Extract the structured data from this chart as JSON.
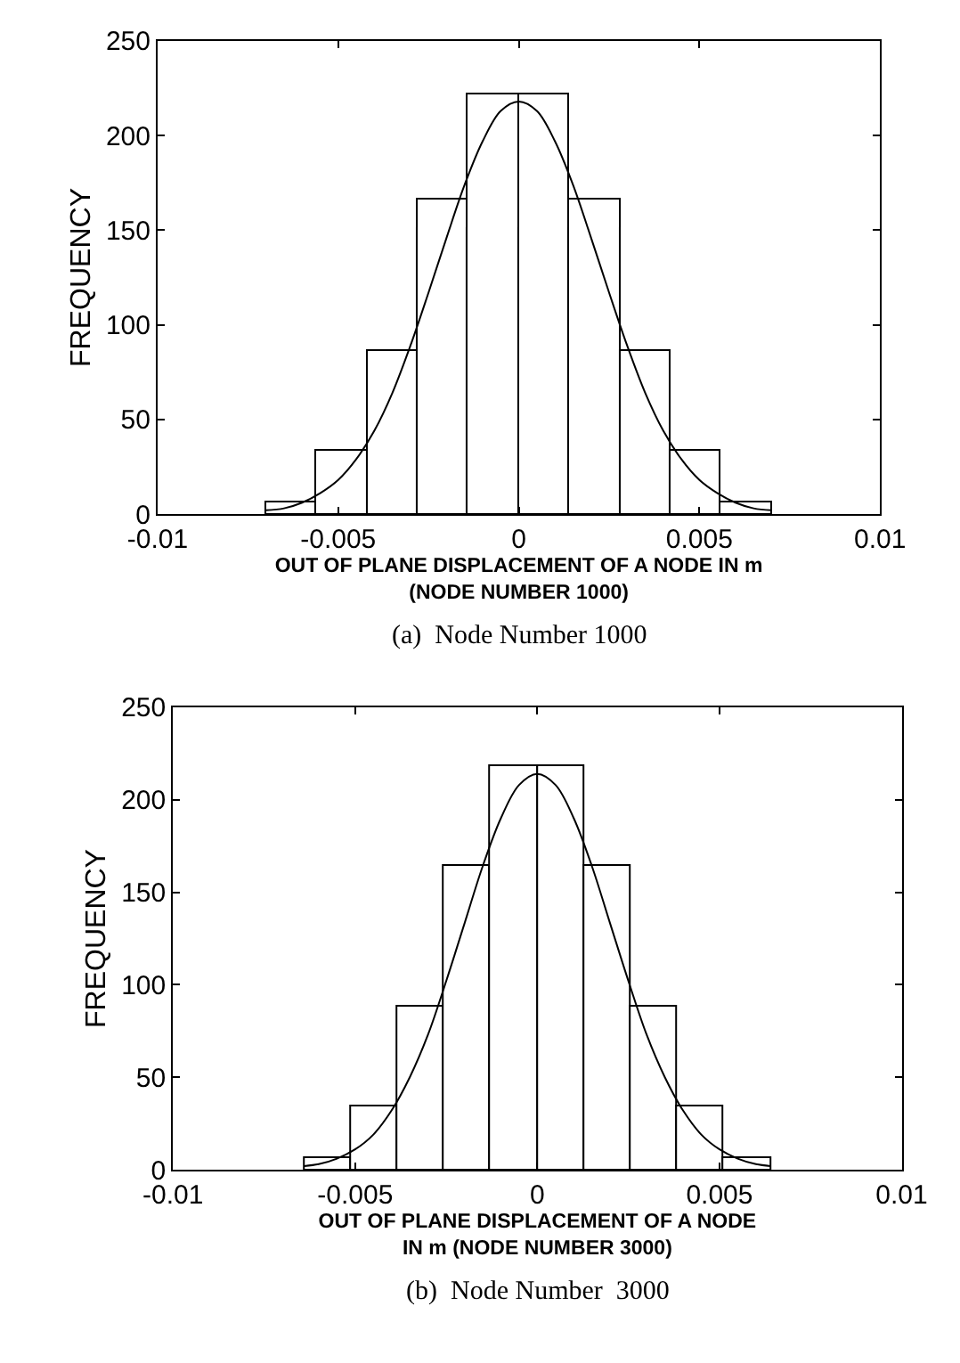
{
  "chart_data": [
    {
      "type": "histogram",
      "xlabel": "OUT OF PLANE DISPLACEMENT OF A NODE IN m\n(NODE NUMBER 1000)",
      "ylabel": "FREQUENCY",
      "annotations": [
        "(a)  Node Number 1000"
      ],
      "series": [
        {
          "color": "#ffffff",
          "bins": [
            -0.007,
            -0.0056,
            -0.0042,
            -0.0028,
            -0.0014,
            0,
            0.0014,
            0.0028,
            0.0042,
            0.0056,
            0.007
          ],
          "values": [
            6,
            33,
            86,
            166,
            222,
            222,
            166,
            86,
            33,
            6
          ]
        },
        {
          "type": "line",
          "color": "#000000",
          "x": [
            -0.007,
            -0.0065,
            -0.006,
            -0.0055,
            -0.005,
            -0.0045,
            -0.004,
            -0.0035,
            -0.003,
            -0.0025,
            -0.002,
            -0.0015,
            -0.001,
            -0.0005,
            0,
            0.0005,
            0.001,
            0.0015,
            0.002,
            0.0025,
            0.003,
            0.0035,
            0.004,
            0.0045,
            0.005,
            0.0055,
            0.006,
            0.0065,
            0.007
          ],
          "values": [
            2,
            3,
            6,
            11,
            18,
            29,
            44,
            64,
            89,
            117,
            146,
            174,
            197,
            213,
            218,
            213,
            197,
            174,
            146,
            117,
            89,
            64,
            44,
            29,
            18,
            11,
            6,
            3,
            2
          ]
        }
      ],
      "xlim": [
        -0.01,
        0.01
      ],
      "xticks": [
        -0.01,
        -0.005,
        0,
        0.005,
        0.01
      ],
      "ylim": [
        0,
        250
      ],
      "yticks": [
        0,
        50,
        100,
        150,
        200,
        250
      ]
    },
    {
      "type": "histogram",
      "xlabel": "OUT OF PLANE DISPLACEMENT OF A NODE\nIN m (NODE NUMBER 3000)",
      "ylabel": "FREQUENCY",
      "annotations": [
        "(b)  Node Number  3000"
      ],
      "series": [
        {
          "color": "#ffffff",
          "bins": [
            -0.0064,
            -0.00512,
            -0.00384,
            -0.00256,
            -0.00128,
            0,
            0.00128,
            0.00256,
            0.00384,
            0.00512,
            0.0064
          ],
          "values": [
            6,
            34,
            88,
            164,
            218,
            218,
            164,
            88,
            34,
            6
          ]
        },
        {
          "type": "line",
          "color": "#000000",
          "x": [
            -0.0064,
            -0.006,
            -0.0055,
            -0.005,
            -0.0045,
            -0.004,
            -0.0035,
            -0.003,
            -0.0025,
            -0.002,
            -0.0015,
            -0.001,
            -0.0005,
            0,
            0.0005,
            0.001,
            0.0015,
            0.002,
            0.0025,
            0.003,
            0.0035,
            0.004,
            0.0045,
            0.005,
            0.0055,
            0.006,
            0.0064
          ],
          "values": [
            2,
            3,
            6,
            11,
            19,
            32,
            50,
            73,
            102,
            133,
            164,
            190,
            208,
            214,
            208,
            190,
            164,
            133,
            102,
            73,
            50,
            32,
            19,
            11,
            6,
            3,
            2
          ]
        }
      ],
      "xlim": [
        -0.01,
        0.01
      ],
      "xticks": [
        -0.01,
        -0.005,
        0,
        0.005,
        0.01
      ],
      "ylim": [
        0,
        250
      ],
      "yticks": [
        0,
        50,
        100,
        150,
        200,
        250
      ]
    }
  ]
}
